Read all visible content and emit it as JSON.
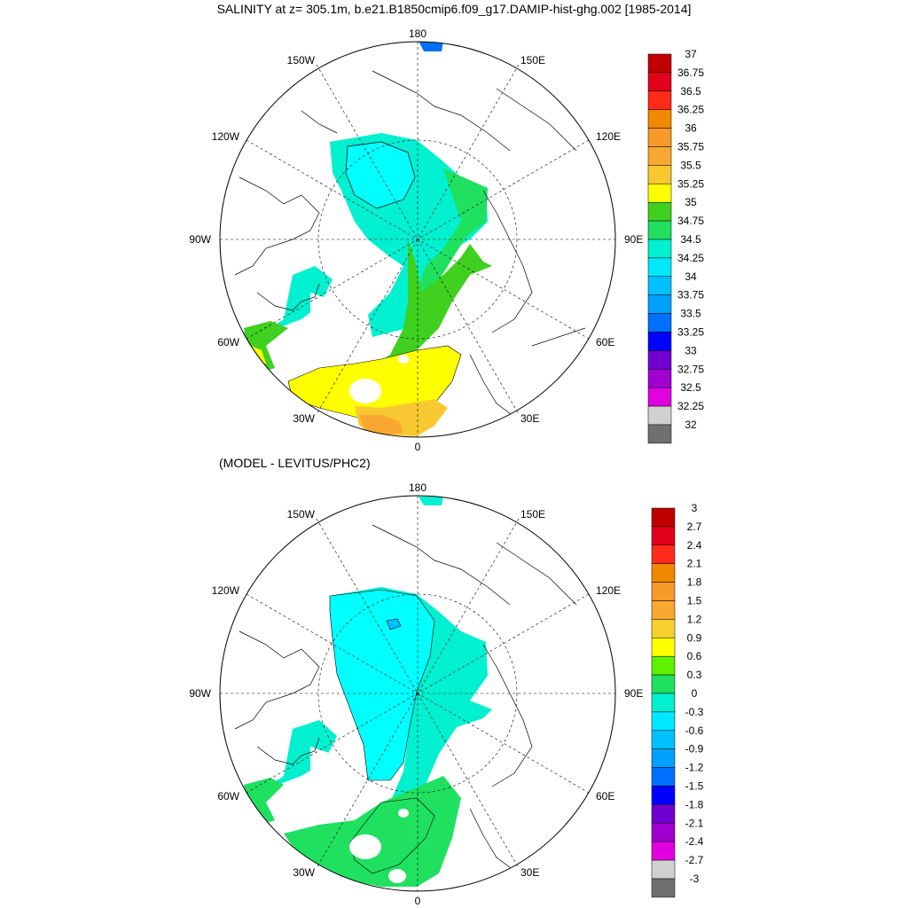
{
  "title": "SALINITY at z= 305.1m, b.e21.B1850cmip6.f09_g17.DAMIP-hist-ghg.002 [1985-2014]",
  "subtitle": "(MODEL - LEVITUS/PHC2)",
  "lon_labels": {
    "top": "180",
    "bottom": "0",
    "left": "90W",
    "right": "90E",
    "nw1": "150W",
    "nw2": "120W",
    "sw1": "60W",
    "sw2": "30W",
    "ne1": "150E",
    "ne2": "120E",
    "se1": "60E",
    "se2": "30E"
  },
  "colorbars": [
    {
      "labels": [
        "37",
        "36.75",
        "36.5",
        "36.25",
        "36",
        "35.75",
        "35.5",
        "35.25",
        "35",
        "34.75",
        "34.5",
        "34.25",
        "34",
        "33.75",
        "33.5",
        "33.25",
        "33",
        "32.75",
        "32.5",
        "32.25",
        "32"
      ],
      "colors": [
        "#c00000",
        "#e0001a",
        "#ff2a1a",
        "#f08800",
        "#f89a2a",
        "#f8a830",
        "#f8c830",
        "#ffff00",
        "#40d020",
        "#20e060",
        "#00f0d0",
        "#00e8ff",
        "#00c0ff",
        "#00a0ff",
        "#0070ff",
        "#0000ff",
        "#7000d0",
        "#a000d0",
        "#e000e0",
        "#d0d0d0",
        "#707070"
      ]
    },
    {
      "labels": [
        "3",
        "2.7",
        "2.4",
        "2.1",
        "1.8",
        "1.5",
        "1.2",
        "0.9",
        "0.6",
        "0.3",
        "0",
        "-0.3",
        "-0.6",
        "-0.9",
        "-1.2",
        "-1.5",
        "-1.8",
        "-2.1",
        "-2.4",
        "-2.7",
        "-3"
      ],
      "colors": [
        "#c00000",
        "#e0001a",
        "#ff2a1a",
        "#f08800",
        "#f89a2a",
        "#f8a830",
        "#f8d030",
        "#ffff00",
        "#60f000",
        "#20e060",
        "#00f0d0",
        "#00e8ff",
        "#00c0ff",
        "#00a0ff",
        "#0070ff",
        "#0000ff",
        "#7000d0",
        "#a000d0",
        "#e000e0",
        "#d0d0d0",
        "#707070"
      ]
    }
  ]
}
